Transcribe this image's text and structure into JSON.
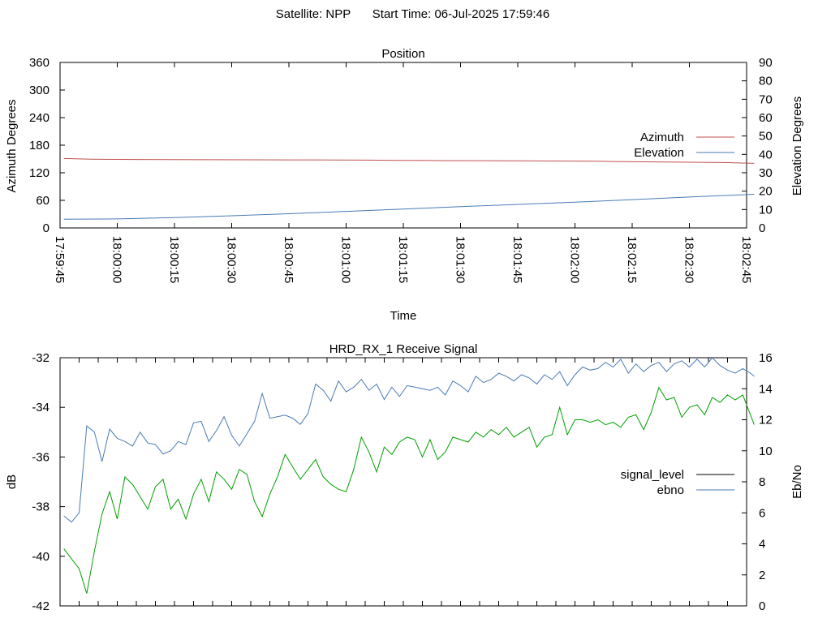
{
  "header": {
    "satellite_label": "Satellite: NPP",
    "start_time_label": "Start Time: 06-Jul-2025 17:59:46"
  },
  "chart_data": [
    {
      "type": "line",
      "title": "Position",
      "xlabel": "Time",
      "ylabel_left": "Azimuth Degrees",
      "ylabel_right": "Elevation Degrees",
      "x_tick_labels": [
        "17:59:45",
        "18:00:00",
        "18:00:15",
        "18:00:30",
        "18:00:45",
        "18:01:00",
        "18:01:15",
        "18:01:30",
        "18:01:45",
        "18:02:00",
        "18:02:15",
        "18:02:30",
        "18:02:45"
      ],
      "xlim_seconds": [
        0,
        180
      ],
      "ylim_left": [
        0,
        360
      ],
      "y_ticks_left": [
        0,
        60,
        120,
        180,
        240,
        300,
        360
      ],
      "ylim_right": [
        0,
        90
      ],
      "y_ticks_right": [
        0,
        10,
        20,
        30,
        40,
        50,
        60,
        70,
        80,
        90
      ],
      "grid": false,
      "legend_position": "right",
      "series": [
        {
          "name": "Azimuth",
          "axis": "left",
          "color": "#c0504d",
          "x_seconds": [
            1,
            8,
            20,
            40,
            60,
            80,
            90,
            100,
            120,
            140,
            150,
            160,
            175,
            182
          ],
          "values": [
            151,
            149.5,
            149,
            148.5,
            148,
            147.5,
            147,
            146.5,
            146,
            145,
            144,
            143.5,
            142,
            140.5
          ]
        },
        {
          "name": "Elevation",
          "axis": "right",
          "color": "#4a7ab5",
          "x_seconds": [
            1,
            15,
            30,
            45,
            60,
            75,
            90,
            105,
            120,
            135,
            150,
            165,
            182
          ],
          "values": [
            4.7,
            4.9,
            5.6,
            6.6,
            7.7,
            9.0,
            10.3,
            11.6,
            12.8,
            14.0,
            15.4,
            16.8,
            18.3
          ]
        }
      ]
    },
    {
      "type": "line",
      "title": "HRD_RX_1 Receive Signal",
      "ylabel_left": "dB",
      "ylabel_right": "Eb/No",
      "ylim_left": [
        -42,
        -32
      ],
      "y_ticks_left": [
        -42,
        -40,
        -38,
        -36,
        -34,
        -32
      ],
      "ylim_right": [
        0,
        16
      ],
      "y_ticks_right": [
        0,
        2,
        4,
        6,
        8,
        10,
        12,
        14,
        16
      ],
      "xlim_seconds": [
        0,
        180
      ],
      "x_tick_seconds": [
        0,
        5,
        10,
        15,
        20,
        25,
        30,
        35,
        40,
        45,
        50,
        55,
        60,
        65,
        70,
        75,
        80,
        85,
        90,
        95,
        100,
        105,
        110,
        115,
        120,
        125,
        130,
        135,
        140,
        145,
        150,
        155,
        160,
        165,
        170,
        175,
        180
      ],
      "grid": false,
      "legend_position": "right",
      "series": [
        {
          "name": "signal_level",
          "axis": "left",
          "legend_color": "#000000",
          "color": "#00a000",
          "x_seconds": [
            1,
            3,
            5,
            7,
            9,
            11,
            13,
            15,
            17,
            19,
            21,
            23,
            25,
            27,
            29,
            31,
            33,
            35,
            37,
            39,
            41,
            43,
            45,
            47,
            49,
            51,
            53,
            55,
            57,
            59,
            61,
            63,
            65,
            67,
            69,
            71,
            73,
            75,
            77,
            79,
            81,
            83,
            85,
            87,
            89,
            91,
            93,
            95,
            97,
            99,
            101,
            103,
            105,
            107,
            109,
            111,
            113,
            115,
            117,
            119,
            121,
            123,
            125,
            127,
            129,
            131,
            133,
            135,
            137,
            139,
            141,
            143,
            145,
            147,
            149,
            151,
            153,
            155,
            157,
            159,
            161,
            163,
            165,
            167,
            169,
            171,
            173,
            175,
            177,
            179,
            181,
            182
          ],
          "values": [
            -39.7,
            -40.1,
            -40.5,
            -41.5,
            -39.8,
            -38.3,
            -37.4,
            -38.5,
            -36.8,
            -37.1,
            -37.6,
            -38.1,
            -37.2,
            -36.9,
            -38.1,
            -37.7,
            -38.5,
            -37.5,
            -36.9,
            -37.8,
            -36.6,
            -36.9,
            -37.3,
            -36.5,
            -36.7,
            -37.8,
            -38.4,
            -37.5,
            -36.8,
            -35.9,
            -36.4,
            -36.9,
            -36.5,
            -36.1,
            -36.8,
            -37.1,
            -37.3,
            -37.4,
            -36.5,
            -35.2,
            -35.8,
            -36.6,
            -35.6,
            -35.9,
            -35.4,
            -35.2,
            -35.3,
            -36.0,
            -35.3,
            -36.1,
            -35.8,
            -35.2,
            -35.3,
            -35.4,
            -35.0,
            -35.2,
            -34.9,
            -35.1,
            -34.8,
            -35.2,
            -35.0,
            -34.8,
            -35.6,
            -35.2,
            -35.1,
            -34.0,
            -35.1,
            -34.5,
            -34.5,
            -34.6,
            -34.5,
            -34.7,
            -34.6,
            -34.8,
            -34.4,
            -34.3,
            -34.9,
            -34.2,
            -33.2,
            -33.7,
            -33.6,
            -34.4,
            -34.0,
            -33.9,
            -34.3,
            -33.6,
            -33.8,
            -33.5,
            -33.7,
            -33.5,
            -34.3,
            -34.7
          ]
        },
        {
          "name": "ebno",
          "axis": "right",
          "legend_color": "#4a7ab5",
          "color": "#4a7ab5",
          "x_seconds": [
            1,
            3,
            5,
            7,
            9,
            11,
            13,
            15,
            17,
            19,
            21,
            23,
            25,
            27,
            29,
            31,
            33,
            35,
            37,
            39,
            41,
            43,
            45,
            47,
            49,
            51,
            53,
            55,
            57,
            59,
            61,
            63,
            65,
            67,
            69,
            71,
            73,
            75,
            77,
            79,
            81,
            83,
            85,
            87,
            89,
            91,
            93,
            95,
            97,
            99,
            101,
            103,
            105,
            107,
            109,
            111,
            113,
            115,
            117,
            119,
            121,
            123,
            125,
            127,
            129,
            131,
            133,
            135,
            137,
            139,
            141,
            143,
            145,
            147,
            149,
            151,
            153,
            155,
            157,
            159,
            161,
            163,
            165,
            167,
            169,
            171,
            173,
            175,
            177,
            179,
            181,
            182
          ],
          "values": [
            5.8,
            5.4,
            6.0,
            11.6,
            11.2,
            9.3,
            11.4,
            10.8,
            10.6,
            10.3,
            11.2,
            10.5,
            10.4,
            9.8,
            10.0,
            10.6,
            10.4,
            11.8,
            11.9,
            10.6,
            11.3,
            12.2,
            11.0,
            10.3,
            11.1,
            11.9,
            13.7,
            12.1,
            12.2,
            12.3,
            12.1,
            11.7,
            12.4,
            14.3,
            13.9,
            13.2,
            14.5,
            13.8,
            14.1,
            14.6,
            13.9,
            14.3,
            13.3,
            14.1,
            13.5,
            14.2,
            14.1,
            14.0,
            13.9,
            14.1,
            13.6,
            14.5,
            14.2,
            13.8,
            14.8,
            14.4,
            14.6,
            15.0,
            14.8,
            14.5,
            14.9,
            14.7,
            14.3,
            14.9,
            14.6,
            15.1,
            14.2,
            14.9,
            15.4,
            15.2,
            15.3,
            15.7,
            15.4,
            15.9,
            15.0,
            15.6,
            15.1,
            15.5,
            15.7,
            15.1,
            15.6,
            15.8,
            15.4,
            15.9,
            15.4,
            16.0,
            15.5,
            15.2,
            15.0,
            15.3,
            15.0,
            14.8
          ]
        }
      ]
    }
  ]
}
